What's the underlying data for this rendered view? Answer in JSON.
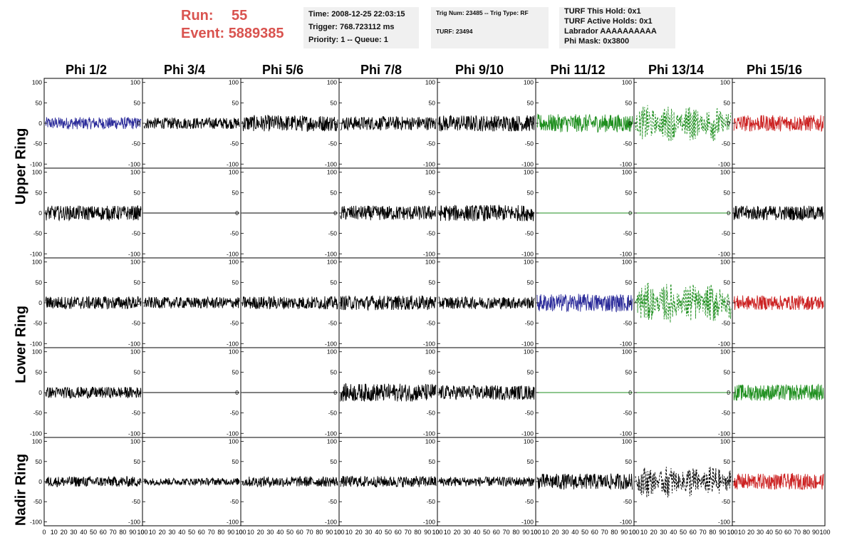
{
  "header": {
    "run_label": "Run:",
    "run_value": "55",
    "event_label": "Event:",
    "event_value": "5889385"
  },
  "info_box_1": {
    "line1": "Time: 2008-12-25 22:03:15",
    "line2": "Trigger: 768.723112 ms",
    "line3": "Priority: 1 -- Queue: 1"
  },
  "info_box_2": {
    "line1": "Trig Num: 23485 -- Trig Type: RF",
    "line2": "TURF: 23494"
  },
  "info_box_3": {
    "line1": "TURF This Hold: 0x1",
    "line2": "TURF Active Holds: 0x1",
    "line3": "Labrador AAAAAAAAAA",
    "line4": "Phi Mask: 0x3800"
  },
  "column_titles": [
    "Phi 1/2",
    "Phi 3/4",
    "Phi 5/6",
    "Phi 7/8",
    "Phi 9/10",
    "Phi 11/12",
    "Phi 13/14",
    "Phi 15/16"
  ],
  "ring_labels": [
    "Upper Ring",
    "Lower Ring",
    "Nadir Ring"
  ],
  "colors": {
    "black": "#000000",
    "blue": "#2b2b9a",
    "green": "#1f8f1f",
    "red": "#cc2222",
    "run_text": "#d9534f",
    "box_bg": "#f0f0f0"
  },
  "chart_data": {
    "type": "line",
    "xlim": [
      0,
      100
    ],
    "ylim": [
      -110,
      110
    ],
    "y_ticks": [
      100,
      50,
      0,
      -50,
      -100
    ],
    "x_ticks": [
      "0",
      "10",
      "20",
      "30",
      "40",
      "50",
      "60",
      "70",
      "80",
      "90",
      "100"
    ],
    "rows": [
      {
        "panels": [
          {
            "color": "blue",
            "style": "solid",
            "amp": 15,
            "flat": false
          },
          {
            "color": "black",
            "style": "solid",
            "amp": 14,
            "flat": false
          },
          {
            "color": "black",
            "style": "solid",
            "amp": 20,
            "flat": false
          },
          {
            "color": "black",
            "style": "solid",
            "amp": 17,
            "flat": false
          },
          {
            "color": "black",
            "style": "solid",
            "amp": 20,
            "flat": false
          },
          {
            "color": "green",
            "style": "solid",
            "amp": 22,
            "flat": false
          },
          {
            "color": "green",
            "style": "dashed",
            "amp": 45,
            "flat": false
          },
          {
            "color": "red",
            "style": "solid",
            "amp": 20,
            "flat": false
          }
        ]
      },
      {
        "panels": [
          {
            "color": "black",
            "style": "solid",
            "amp": 18,
            "flat": false
          },
          {
            "color": "black",
            "style": "solid",
            "amp": 0,
            "flat": true
          },
          {
            "color": "black",
            "style": "solid",
            "amp": 0,
            "flat": true
          },
          {
            "color": "black",
            "style": "solid",
            "amp": 18,
            "flat": false
          },
          {
            "color": "black",
            "style": "solid",
            "amp": 20,
            "flat": false
          },
          {
            "color": "green",
            "style": "solid",
            "amp": 0,
            "flat": true
          },
          {
            "color": "green",
            "style": "solid",
            "amp": 0,
            "flat": true
          },
          {
            "color": "black",
            "style": "solid",
            "amp": 18,
            "flat": false
          }
        ]
      },
      {
        "panels": [
          {
            "color": "black",
            "style": "solid",
            "amp": 16,
            "flat": false
          },
          {
            "color": "black",
            "style": "solid",
            "amp": 14,
            "flat": false
          },
          {
            "color": "black",
            "style": "solid",
            "amp": 16,
            "flat": false
          },
          {
            "color": "black",
            "style": "solid",
            "amp": 18,
            "flat": false
          },
          {
            "color": "black",
            "style": "solid",
            "amp": 15,
            "flat": false
          },
          {
            "color": "blue",
            "style": "solid",
            "amp": 22,
            "flat": false
          },
          {
            "color": "green",
            "style": "dashed",
            "amp": 50,
            "flat": false
          },
          {
            "color": "red",
            "style": "solid",
            "amp": 18,
            "flat": false
          }
        ]
      },
      {
        "panels": [
          {
            "color": "black",
            "style": "solid",
            "amp": 14,
            "flat": false
          },
          {
            "color": "black",
            "style": "solid",
            "amp": 0,
            "flat": true
          },
          {
            "color": "black",
            "style": "solid",
            "amp": 0,
            "flat": true
          },
          {
            "color": "black",
            "style": "solid",
            "amp": 22,
            "flat": false
          },
          {
            "color": "black",
            "style": "solid",
            "amp": 18,
            "flat": false
          },
          {
            "color": "green",
            "style": "solid",
            "amp": 0,
            "flat": true
          },
          {
            "color": "green",
            "style": "solid",
            "amp": 0,
            "flat": true
          },
          {
            "color": "green",
            "style": "solid",
            "amp": 20,
            "flat": false
          }
        ]
      },
      {
        "panels": [
          {
            "color": "black",
            "style": "solid",
            "amp": 13,
            "flat": false
          },
          {
            "color": "black",
            "style": "solid",
            "amp": 9,
            "flat": false
          },
          {
            "color": "black",
            "style": "solid",
            "amp": 13,
            "flat": false
          },
          {
            "color": "black",
            "style": "solid",
            "amp": 14,
            "flat": false
          },
          {
            "color": "black",
            "style": "solid",
            "amp": 12,
            "flat": false
          },
          {
            "color": "black",
            "style": "solid",
            "amp": 20,
            "flat": false
          },
          {
            "color": "black",
            "style": "dashed",
            "amp": 40,
            "flat": false
          },
          {
            "color": "red",
            "style": "solid",
            "amp": 20,
            "flat": false
          }
        ]
      }
    ]
  }
}
